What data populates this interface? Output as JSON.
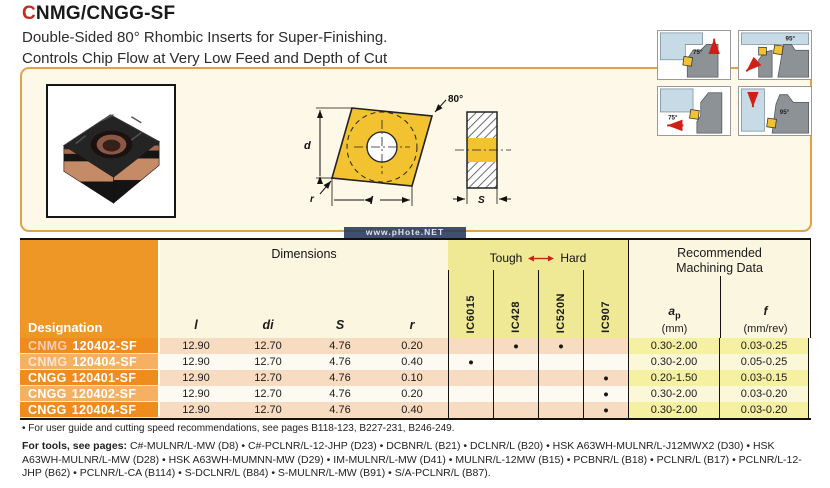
{
  "header": {
    "title_accent": "C",
    "title_rest": "NMG/CNGG-SF",
    "subtitle_line1": "Double-Sided 80° Rhombic Inserts for Super-Finishing.",
    "subtitle_line2": "Controls Chip Flow at Very Low Feed and Depth of Cut"
  },
  "watermark_text": "www.pHote.NET",
  "drawing_labels": {
    "angle": "80°",
    "width": "d",
    "length": "l",
    "radius": "r",
    "thickness": "S"
  },
  "application_diagrams": {
    "angles": [
      "75°",
      "95°",
      "75°",
      "95°"
    ]
  },
  "table": {
    "designation_header": "Designation",
    "group_dimensions": "Dimensions",
    "tough_label": "Tough",
    "hard_label": "Hard",
    "recommended_line1": "Recommended",
    "recommended_line2": "Machining Data",
    "dim_columns": [
      "l",
      "di",
      "S",
      "r"
    ],
    "grade_columns": [
      "IC6015",
      "IC428",
      "IC520N",
      "IC907"
    ],
    "md_columns": [
      {
        "base": "a",
        "sub": "p",
        "unit": "(mm)"
      },
      {
        "base": "f",
        "sub": "",
        "unit": "(mm/rev)"
      }
    ],
    "dot_char": "●",
    "rows": [
      {
        "prefix": "CNMG",
        "suffix": "120402-SF",
        "l": "12.90",
        "di": "12.70",
        "s": "4.76",
        "r": "0.20",
        "grades": [
          false,
          true,
          true,
          false
        ],
        "ap": "0.30-2.00",
        "f": "0.03-0.25"
      },
      {
        "prefix": "CNMG",
        "suffix": "120404-SF",
        "l": "12.90",
        "di": "12.70",
        "s": "4.76",
        "r": "0.40",
        "grades": [
          true,
          false,
          false,
          false
        ],
        "ap": "0.30-2.00",
        "f": "0.05-0.25"
      },
      {
        "prefix": "CNGG",
        "suffix": "120401-SF",
        "l": "12.90",
        "di": "12.70",
        "s": "4.76",
        "r": "0.10",
        "grades": [
          false,
          false,
          false,
          true
        ],
        "ap": "0.20-1.50",
        "f": "0.03-0.15"
      },
      {
        "prefix": "CNGG",
        "suffix": "120402-SF",
        "l": "12.90",
        "di": "12.70",
        "s": "4.76",
        "r": "0.20",
        "grades": [
          false,
          false,
          false,
          true
        ],
        "ap": "0.30-2.00",
        "f": "0.03-0.20"
      },
      {
        "prefix": "CNGG",
        "suffix": "120404-SF",
        "l": "12.90",
        "di": "12.70",
        "s": "4.76",
        "r": "0.40",
        "grades": [
          false,
          false,
          false,
          true
        ],
        "ap": "0.30-2.00",
        "f": "0.03-0.20"
      }
    ]
  },
  "footnotes": {
    "user_guide": "• For user guide and cutting speed recommendations, see pages B118-123, B227-231, B246-249.",
    "tools_label": "For tools, see pages:",
    "tools_list": " C#-MULNR/L-MW (D8) • C#-PCLNR/L-12-JHP (D23) • DCBNR/L (B21) • DCLNR/L (B20) • HSK A63WH-MULNR/L-J12MWX2 (D30) • HSK A63WH-MULNR/L-MW (D28) • HSK A63WH-MUMNN-MW (D29) • IM-MULNR/L-MW (D41) • MULNR/L-12MW (B15) • PCBNR/L (B18) • PCLNR/L (B17) • PCLNR/L-12-JHP (B62) • PCLNR/L-CA (B114) • S-DCLNR/L (B84) • S-MULNR/L-MW (B91) • S/A-PCLNR/L (B87)."
  },
  "colors": {
    "accent_red": "#c42a21",
    "orange_header": "#ee9626",
    "orange_row_dark": "#ee8d1e",
    "orange_row_light": "#f5b161",
    "yellow_grades": "#efe996",
    "cream": "#fbf6e0",
    "row_peach": "#f8dcc2",
    "machining_yellow": "#f6f1a1",
    "insert_yellow": "#f2c230",
    "arrow_red": "#d21f16"
  }
}
